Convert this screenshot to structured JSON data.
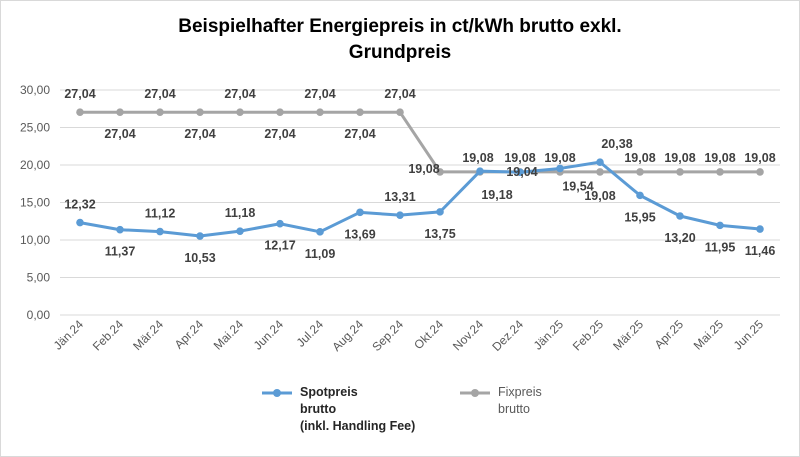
{
  "chart_data": {
    "type": "line",
    "title_line1": "Beispielhafter Energiepreis in ct/kWh brutto exkl.",
    "title_line2": "Grundpreis",
    "categories": [
      "Jän.24",
      "Feb.24",
      "Mär.24",
      "Apr.24",
      "Mai.24",
      "Jun.24",
      "Jul.24",
      "Aug.24",
      "Sep.24",
      "Okt.24",
      "Nov.24",
      "Dez.24",
      "Jän.25",
      "Feb.25",
      "Mär.25",
      "Apr.25",
      "Mai.25",
      "Jun.25"
    ],
    "ylim": [
      0,
      30
    ],
    "yticks": [
      "0,00",
      "5,00",
      "10,00",
      "15,00",
      "20,00",
      "25,00",
      "30,00"
    ],
    "grid": true,
    "legend_position": "bottom",
    "series": [
      {
        "name_lines": [
          "Spotpreis",
          "brutto",
          "(inkl. Handling Fee)"
        ],
        "color": "#5b9bd5",
        "values": [
          12.32,
          11.37,
          11.12,
          10.53,
          11.18,
          12.17,
          11.09,
          13.69,
          13.31,
          13.75,
          19.18,
          19.04,
          19.54,
          20.38,
          15.95,
          13.2,
          11.95,
          11.46
        ],
        "labels": [
          "12,32",
          "11,37",
          "11,12",
          "10,53",
          "11,18",
          "12,17",
          "11,09",
          "13,69",
          "13,31",
          "13,75",
          "19,18",
          "19,04",
          "19,54",
          "20,38",
          "15,95",
          "13,20",
          "11,95",
          "11,46"
        ]
      },
      {
        "name_lines": [
          "Fixpreis",
          "brutto"
        ],
        "color": "#a5a5a5",
        "values": [
          27.04,
          27.04,
          27.04,
          27.04,
          27.04,
          27.04,
          27.04,
          27.04,
          27.04,
          19.08,
          19.08,
          19.08,
          19.08,
          19.08,
          19.08,
          19.08,
          19.08,
          19.08
        ],
        "labels": [
          "27,04",
          "27,04",
          "27,04",
          "27,04",
          "27,04",
          "27,04",
          "27,04",
          "27,04",
          "27,04",
          "19,08",
          "19,08",
          "19,08",
          "19,08",
          "19,08",
          "19,08",
          "19,08",
          "19,08",
          "19,08"
        ]
      }
    ]
  }
}
